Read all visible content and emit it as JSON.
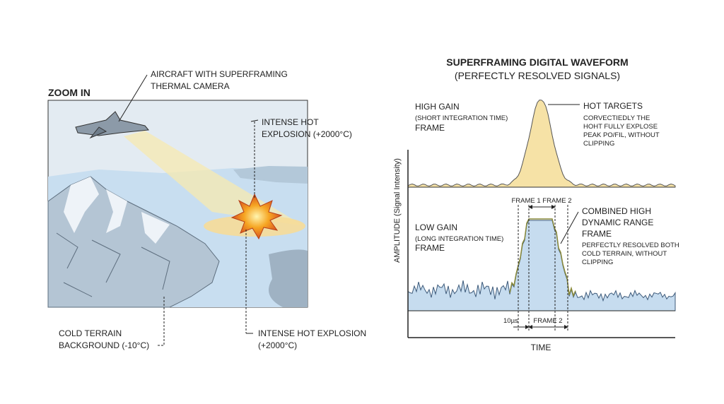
{
  "left": {
    "title": "ZOOM IN",
    "aircraft_label": [
      "AIRCRAFT WITH SUPERFRAMING",
      "THERMAL CAMERA"
    ],
    "explosion_label": [
      "INTENSE HOT",
      "EXPLOSION (+2000°C)"
    ],
    "terrain_label": [
      "COLD TERRAIN",
      "BACKGROUND (-10°C)"
    ],
    "explosion_caption": [
      "INTENSE HOT EXPLOSION",
      "(+2000°C)"
    ]
  },
  "right": {
    "title": "SUPERFRAMING DIGITAL WAVEFORM",
    "subtitle": "(PERFECTLY RESOLVED SIGNALS)",
    "high_gain": {
      "label": "HIGH GAIN",
      "note": "(SHORT INTEGRATION TIME)",
      "frame": "FRAME"
    },
    "hot_targets": {
      "label": "HOT TARGETS",
      "note": [
        "CORVECTIEDLY THE",
        "HOHT FULLY EXPLOSE",
        "PEAK PO/FIL, WITHOUT",
        "CLIPPING"
      ]
    },
    "frames_label": "FRAME 1 FRAME 2",
    "combined": {
      "label": [
        "COMBINED HIGH",
        "DYNAMIC RANGE",
        "FRAME"
      ],
      "note": [
        "PERFECTLY RESOLVED BOTH",
        "COLD TERRAIN, WITHOUT",
        "CLIPPING"
      ]
    },
    "low_gain": {
      "label": "LOW GAIN",
      "note": "(LONG INTEGRATION TIME)",
      "frame": "FRAME"
    },
    "y_axis": "AMPLITUDE (Signal Intensity)",
    "x_axis": "TIME",
    "interval": "10µs",
    "frame2": "FRAME 2"
  }
}
